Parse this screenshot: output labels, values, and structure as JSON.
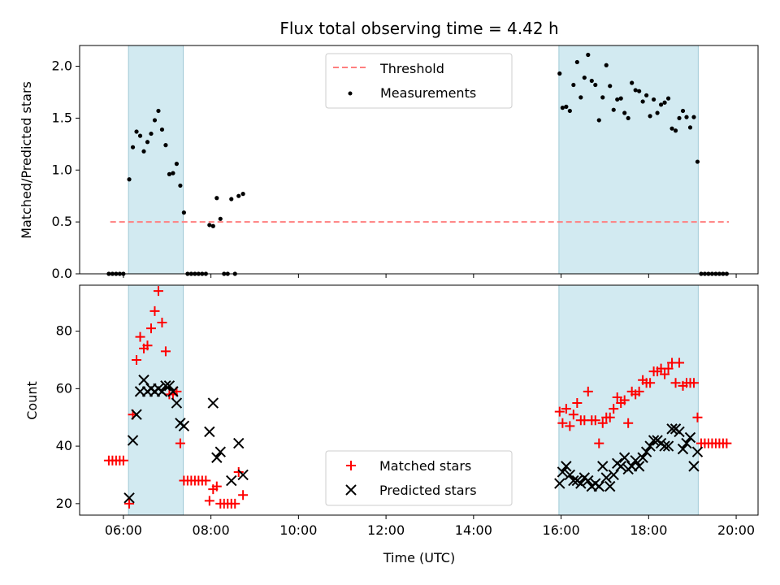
{
  "chart_data": [
    {
      "type": "scatter",
      "title": "Flux total observing time = 4.42 h",
      "xlabel": "",
      "ylabel": "Matched/Predicted stars",
      "xlim": [
        "05:00",
        "20:30"
      ],
      "ylim": [
        0,
        2.2
      ],
      "yticks": [
        0.0,
        0.5,
        1.0,
        1.5,
        2.0
      ],
      "ytick_labels": [
        "0.0",
        "0.5",
        "1.0",
        "1.5",
        "2.0"
      ],
      "legend": {
        "placement": "top-center",
        "entries": [
          "Threshold",
          "Measurements"
        ]
      },
      "shaded_intervals": [
        [
          "06:07",
          "07:22"
        ],
        [
          "15:57",
          "19:08"
        ]
      ],
      "threshold": {
        "name": "Threshold",
        "value": 0.5,
        "x_range": [
          "05:42",
          "19:50"
        ],
        "style": "dashed",
        "color": "#ff7f7f"
      },
      "series": [
        {
          "name": "Measurements",
          "color": "#000000",
          "marker": "dot",
          "points": [
            [
              "05:40",
              0
            ],
            [
              "05:45",
              0
            ],
            [
              "05:50",
              0
            ],
            [
              "05:55",
              0
            ],
            [
              "06:00",
              0
            ],
            [
              "06:08",
              0.91
            ],
            [
              "06:13",
              1.22
            ],
            [
              "06:18",
              1.37
            ],
            [
              "06:23",
              1.33
            ],
            [
              "06:28",
              1.18
            ],
            [
              "06:33",
              1.27
            ],
            [
              "06:38",
              1.35
            ],
            [
              "06:43",
              1.48
            ],
            [
              "06:48",
              1.57
            ],
            [
              "06:53",
              1.39
            ],
            [
              "06:58",
              1.24
            ],
            [
              "07:03",
              0.96
            ],
            [
              "07:08",
              0.97
            ],
            [
              "07:13",
              1.06
            ],
            [
              "07:18",
              0.85
            ],
            [
              "07:23",
              0.59
            ],
            [
              "07:28",
              0
            ],
            [
              "07:33",
              0
            ],
            [
              "07:38",
              0
            ],
            [
              "07:43",
              0
            ],
            [
              "07:48",
              0
            ],
            [
              "07:53",
              0
            ],
            [
              "07:58",
              0.47
            ],
            [
              "08:03",
              0.46
            ],
            [
              "08:08",
              0.73
            ],
            [
              "08:13",
              0.53
            ],
            [
              "08:18",
              0
            ],
            [
              "08:23",
              0
            ],
            [
              "08:33",
              0
            ],
            [
              "08:28",
              0.72
            ],
            [
              "08:38",
              0.75
            ],
            [
              "08:44",
              0.77
            ],
            [
              "15:58",
              1.93
            ],
            [
              "16:02",
              1.6
            ],
            [
              "16:07",
              1.61
            ],
            [
              "16:12",
              1.57
            ],
            [
              "16:17",
              1.82
            ],
            [
              "16:22",
              2.04
            ],
            [
              "16:27",
              1.7
            ],
            [
              "16:32",
              1.89
            ],
            [
              "16:37",
              2.11
            ],
            [
              "16:42",
              1.86
            ],
            [
              "16:47",
              1.82
            ],
            [
              "16:52",
              1.48
            ],
            [
              "16:57",
              1.7
            ],
            [
              "17:02",
              2.01
            ],
            [
              "17:07",
              1.81
            ],
            [
              "17:12",
              1.58
            ],
            [
              "17:17",
              1.68
            ],
            [
              "17:22",
              1.69
            ],
            [
              "17:27",
              1.55
            ],
            [
              "17:32",
              1.5
            ],
            [
              "17:37",
              1.84
            ],
            [
              "17:42",
              1.77
            ],
            [
              "17:47",
              1.76
            ],
            [
              "17:52",
              1.66
            ],
            [
              "17:57",
              1.72
            ],
            [
              "18:02",
              1.52
            ],
            [
              "18:07",
              1.68
            ],
            [
              "18:12",
              1.55
            ],
            [
              "18:17",
              1.63
            ],
            [
              "18:22",
              1.65
            ],
            [
              "18:27",
              1.69
            ],
            [
              "18:32",
              1.4
            ],
            [
              "18:37",
              1.38
            ],
            [
              "18:42",
              1.5
            ],
            [
              "18:47",
              1.57
            ],
            [
              "18:52",
              1.51
            ],
            [
              "18:57",
              1.41
            ],
            [
              "19:02",
              1.51
            ],
            [
              "19:07",
              1.08
            ],
            [
              "19:12",
              0
            ],
            [
              "19:17",
              0
            ],
            [
              "19:22",
              0
            ],
            [
              "19:27",
              0
            ],
            [
              "19:32",
              0
            ],
            [
              "19:37",
              0
            ],
            [
              "19:42",
              0
            ],
            [
              "19:47",
              0
            ]
          ]
        }
      ]
    },
    {
      "type": "scatter",
      "title": "",
      "xlabel": "Time (UTC)",
      "ylabel": "Count",
      "xlim": [
        "05:00",
        "20:30"
      ],
      "ylim": [
        16,
        96
      ],
      "xticks": [
        "06:00",
        "08:00",
        "10:00",
        "12:00",
        "14:00",
        "16:00",
        "18:00",
        "20:00"
      ],
      "yticks": [
        20,
        40,
        60,
        80
      ],
      "ytick_labels": [
        "20",
        "40",
        "60",
        "80"
      ],
      "legend": {
        "placement": "bottom-center",
        "entries": [
          "Matched stars",
          "Predicted stars"
        ]
      },
      "shaded_intervals": [
        [
          "06:07",
          "07:22"
        ],
        [
          "15:57",
          "19:08"
        ]
      ],
      "series": [
        {
          "name": "Matched stars",
          "color": "#ff0000",
          "marker": "plus",
          "points": [
            [
              "05:40",
              35
            ],
            [
              "05:45",
              35
            ],
            [
              "05:50",
              35
            ],
            [
              "05:55",
              35
            ],
            [
              "06:00",
              35
            ],
            [
              "06:08",
              20
            ],
            [
              "06:13",
              51
            ],
            [
              "06:18",
              70
            ],
            [
              "06:23",
              78
            ],
            [
              "06:28",
              74
            ],
            [
              "06:33",
              75
            ],
            [
              "06:38",
              81
            ],
            [
              "06:43",
              87
            ],
            [
              "06:48",
              94
            ],
            [
              "06:53",
              83
            ],
            [
              "06:58",
              73
            ],
            [
              "07:03",
              58
            ],
            [
              "07:08",
              58
            ],
            [
              "07:13",
              59
            ],
            [
              "07:18",
              41
            ],
            [
              "07:23",
              28
            ],
            [
              "07:28",
              28
            ],
            [
              "07:33",
              28
            ],
            [
              "07:38",
              28
            ],
            [
              "07:43",
              28
            ],
            [
              "07:48",
              28
            ],
            [
              "07:53",
              28
            ],
            [
              "07:58",
              21
            ],
            [
              "08:03",
              25
            ],
            [
              "08:08",
              26
            ],
            [
              "08:13",
              20
            ],
            [
              "08:18",
              20
            ],
            [
              "08:23",
              20
            ],
            [
              "08:28",
              20
            ],
            [
              "08:33",
              20
            ],
            [
              "08:38",
              31
            ],
            [
              "08:44",
              23
            ],
            [
              "15:58",
              52
            ],
            [
              "16:02",
              48
            ],
            [
              "16:07",
              53
            ],
            [
              "16:12",
              47
            ],
            [
              "16:17",
              51
            ],
            [
              "16:22",
              55
            ],
            [
              "16:27",
              49
            ],
            [
              "16:32",
              49
            ],
            [
              "16:37",
              59
            ],
            [
              "16:42",
              49
            ],
            [
              "16:47",
              49
            ],
            [
              "16:52",
              41
            ],
            [
              "16:57",
              48
            ],
            [
              "17:02",
              50
            ],
            [
              "17:07",
              50
            ],
            [
              "17:12",
              53
            ],
            [
              "17:17",
              57
            ],
            [
              "17:22",
              55
            ],
            [
              "17:27",
              56
            ],
            [
              "17:32",
              48
            ],
            [
              "17:37",
              59
            ],
            [
              "17:42",
              58
            ],
            [
              "17:47",
              59
            ],
            [
              "17:52",
              63
            ],
            [
              "17:57",
              62
            ],
            [
              "18:02",
              62
            ],
            [
              "18:07",
              66
            ],
            [
              "18:12",
              66
            ],
            [
              "18:17",
              67
            ],
            [
              "18:22",
              65
            ],
            [
              "18:27",
              67
            ],
            [
              "18:32",
              69
            ],
            [
              "18:37",
              62
            ],
            [
              "18:42",
              69
            ],
            [
              "18:47",
              61
            ],
            [
              "18:52",
              62
            ],
            [
              "18:57",
              62
            ],
            [
              "19:02",
              62
            ],
            [
              "19:07",
              50
            ],
            [
              "19:12",
              41
            ],
            [
              "19:17",
              41
            ],
            [
              "19:22",
              41
            ],
            [
              "19:27",
              41
            ],
            [
              "19:32",
              41
            ],
            [
              "19:37",
              41
            ],
            [
              "19:42",
              41
            ],
            [
              "19:47",
              41
            ]
          ]
        },
        {
          "name": "Predicted stars",
          "color": "#000000",
          "marker": "x",
          "points": [
            [
              "06:08",
              22
            ],
            [
              "06:13",
              42
            ],
            [
              "06:18",
              51
            ],
            [
              "06:23",
              59
            ],
            [
              "06:28",
              63
            ],
            [
              "06:33",
              59
            ],
            [
              "06:38",
              60
            ],
            [
              "06:43",
              59
            ],
            [
              "06:48",
              60
            ],
            [
              "06:53",
              59
            ],
            [
              "06:58",
              61
            ],
            [
              "07:03",
              61
            ],
            [
              "07:08",
              59
            ],
            [
              "07:13",
              55
            ],
            [
              "07:18",
              48
            ],
            [
              "07:23",
              47
            ],
            [
              "07:58",
              45
            ],
            [
              "08:03",
              55
            ],
            [
              "08:08",
              36
            ],
            [
              "08:13",
              38
            ],
            [
              "08:28",
              28
            ],
            [
              "08:38",
              41
            ],
            [
              "08:44",
              30
            ],
            [
              "15:58",
              27
            ],
            [
              "16:02",
              31
            ],
            [
              "16:07",
              33
            ],
            [
              "16:12",
              30
            ],
            [
              "16:17",
              28
            ],
            [
              "16:22",
              28
            ],
            [
              "16:27",
              27
            ],
            [
              "16:32",
              29
            ],
            [
              "16:37",
              28
            ],
            [
              "16:42",
              26
            ],
            [
              "16:47",
              27
            ],
            [
              "16:52",
              26
            ],
            [
              "16:57",
              33
            ],
            [
              "17:02",
              29
            ],
            [
              "17:07",
              26
            ],
            [
              "17:12",
              30
            ],
            [
              "17:17",
              34
            ],
            [
              "17:22",
              33
            ],
            [
              "17:27",
              36
            ],
            [
              "17:32",
              32
            ],
            [
              "17:37",
              33
            ],
            [
              "17:42",
              35
            ],
            [
              "17:47",
              33
            ],
            [
              "17:52",
              36
            ],
            [
              "17:57",
              38
            ],
            [
              "18:02",
              40
            ],
            [
              "18:07",
              42
            ],
            [
              "18:12",
              42
            ],
            [
              "18:17",
              41
            ],
            [
              "18:22",
              40
            ],
            [
              "18:27",
              40
            ],
            [
              "18:32",
              46
            ],
            [
              "18:37",
              46
            ],
            [
              "18:42",
              45
            ],
            [
              "18:47",
              39
            ],
            [
              "18:52",
              41
            ],
            [
              "18:57",
              43
            ],
            [
              "19:02",
              33
            ],
            [
              "19:07",
              38
            ]
          ]
        }
      ]
    }
  ],
  "colors": {
    "shade": "#add8e6",
    "threshold": "#ff7f7f",
    "matched": "#ff0000",
    "predicted": "#000000"
  }
}
